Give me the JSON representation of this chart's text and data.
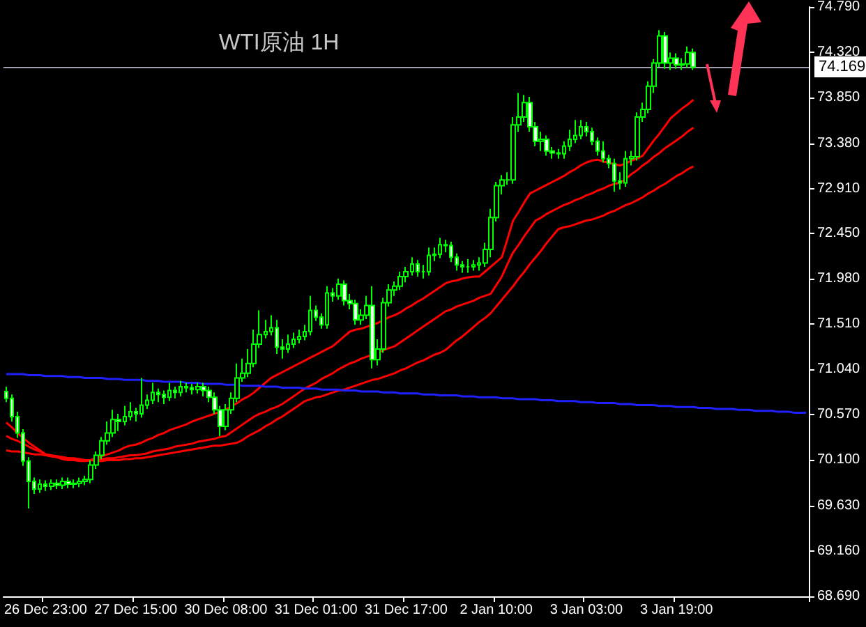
{
  "chart_data": {
    "type": "candlestick",
    "title": "WTI原油 1H",
    "categories": [
      null,
      null,
      null,
      null,
      null,
      null,
      null,
      "26 Dec 23:00",
      null,
      null,
      null,
      null,
      null,
      null,
      null,
      null,
      null,
      null,
      null,
      null,
      null,
      null,
      null,
      "27 Dec 15:00",
      null,
      null,
      null,
      null,
      null,
      null,
      null,
      null,
      null,
      null,
      null,
      null,
      null,
      null,
      null,
      "30 Dec 08:00",
      null,
      null,
      null,
      null,
      null,
      null,
      null,
      null,
      null,
      null,
      null,
      null,
      null,
      null,
      null,
      "31 Dec 01:00",
      null,
      null,
      null,
      null,
      null,
      null,
      null,
      null,
      null,
      null,
      null,
      null,
      null,
      null,
      null,
      "31 Dec 17:00",
      null,
      null,
      null,
      null,
      null,
      null,
      null,
      null,
      null,
      null,
      null,
      null,
      null,
      null,
      null,
      "2 Jan 10:00",
      null,
      null,
      null,
      null,
      null,
      null,
      null,
      null,
      null,
      null,
      null,
      null,
      null,
      null,
      null,
      "3 Jan 03:00",
      null,
      null,
      null,
      null,
      null,
      null,
      null,
      null,
      null,
      null,
      null,
      null,
      null,
      null,
      null,
      "3 Jan 19:00",
      null,
      null,
      null,
      null,
      null,
      null,
      null,
      null,
      null,
      null,
      null,
      null,
      null,
      null,
      null,
      null,
      null,
      null,
      null,
      null,
      null,
      null,
      null
    ],
    "color": "#00ff00",
    "ohlc": [
      [
        70.81,
        70.86,
        70.7,
        70.74
      ],
      [
        70.74,
        70.78,
        70.5,
        70.55
      ],
      [
        70.55,
        70.6,
        70.33,
        70.38
      ],
      [
        70.38,
        70.42,
        70.04,
        70.09
      ],
      [
        70.09,
        70.13,
        69.6,
        69.88
      ],
      [
        69.88,
        69.92,
        69.75,
        69.8
      ],
      [
        69.8,
        69.9,
        69.76,
        69.85
      ],
      [
        69.85,
        69.89,
        69.78,
        69.83
      ],
      [
        69.83,
        69.9,
        69.79,
        69.86
      ],
      [
        69.86,
        69.9,
        69.8,
        69.84
      ],
      [
        69.84,
        69.92,
        69.8,
        69.88
      ],
      [
        69.88,
        69.92,
        69.81,
        69.85
      ],
      [
        69.85,
        69.9,
        69.81,
        69.86
      ],
      [
        69.86,
        69.92,
        69.82,
        69.88
      ],
      [
        69.88,
        69.94,
        69.84,
        69.9
      ],
      [
        69.9,
        70.1,
        69.86,
        70.05
      ],
      [
        70.05,
        70.19,
        70.01,
        70.15
      ],
      [
        70.15,
        70.34,
        70.11,
        70.3
      ],
      [
        70.3,
        70.5,
        70.26,
        70.38
      ],
      [
        70.38,
        70.62,
        70.34,
        70.52
      ],
      [
        70.52,
        70.58,
        70.4,
        70.5
      ],
      [
        70.5,
        70.66,
        70.46,
        70.55
      ],
      [
        70.55,
        70.7,
        70.51,
        70.6
      ],
      [
        70.6,
        70.64,
        70.5,
        70.58
      ],
      [
        70.58,
        70.95,
        70.54,
        70.67
      ],
      [
        70.67,
        70.78,
        70.63,
        70.72
      ],
      [
        70.72,
        70.9,
        70.68,
        70.8
      ],
      [
        70.8,
        70.84,
        70.7,
        70.78
      ],
      [
        70.78,
        70.82,
        70.68,
        70.75
      ],
      [
        70.75,
        70.9,
        70.71,
        70.82
      ],
      [
        70.82,
        70.86,
        70.74,
        70.8
      ],
      [
        70.8,
        70.92,
        70.76,
        70.86
      ],
      [
        70.86,
        70.9,
        70.8,
        70.85
      ],
      [
        70.85,
        70.89,
        70.78,
        70.83
      ],
      [
        70.83,
        70.9,
        70.79,
        70.86
      ],
      [
        70.86,
        70.9,
        70.76,
        70.82
      ],
      [
        70.82,
        70.86,
        70.7,
        70.75
      ],
      [
        70.75,
        70.8,
        70.58,
        70.62
      ],
      [
        70.62,
        70.66,
        70.35,
        70.45
      ],
      [
        70.45,
        70.68,
        70.41,
        70.62
      ],
      [
        70.62,
        70.8,
        70.58,
        70.74
      ],
      [
        70.74,
        71.1,
        70.7,
        70.95
      ],
      [
        70.95,
        71.15,
        70.91,
        71.0
      ],
      [
        71.0,
        71.25,
        70.96,
        71.1
      ],
      [
        71.1,
        71.45,
        71.06,
        71.3
      ],
      [
        71.3,
        71.65,
        71.26,
        71.4
      ],
      [
        71.4,
        71.55,
        71.36,
        71.43
      ],
      [
        71.43,
        71.6,
        71.39,
        71.47
      ],
      [
        71.47,
        71.55,
        71.2,
        71.27
      ],
      [
        71.27,
        71.35,
        71.15,
        71.25
      ],
      [
        71.25,
        71.4,
        71.21,
        71.3
      ],
      [
        71.3,
        71.42,
        71.26,
        71.35
      ],
      [
        71.35,
        71.45,
        71.31,
        71.38
      ],
      [
        71.38,
        71.5,
        71.34,
        71.43
      ],
      [
        71.43,
        71.8,
        71.39,
        71.65
      ],
      [
        71.65,
        71.7,
        71.54,
        71.58
      ],
      [
        71.58,
        71.62,
        71.46,
        71.5
      ],
      [
        71.5,
        71.9,
        71.46,
        71.83
      ],
      [
        71.83,
        71.88,
        71.74,
        71.8
      ],
      [
        71.8,
        71.98,
        71.76,
        71.92
      ],
      [
        71.92,
        71.96,
        71.7,
        71.75
      ],
      [
        71.75,
        71.82,
        71.66,
        71.72
      ],
      [
        71.72,
        71.76,
        71.5,
        71.55
      ],
      [
        71.55,
        71.66,
        71.5,
        71.6
      ],
      [
        71.6,
        71.8,
        71.56,
        71.7
      ],
      [
        71.7,
        71.9,
        71.05,
        71.14
      ],
      [
        71.14,
        71.35,
        71.08,
        71.25
      ],
      [
        71.25,
        71.78,
        71.21,
        71.73
      ],
      [
        71.73,
        71.92,
        71.69,
        71.86
      ],
      [
        71.86,
        71.95,
        71.8,
        71.9
      ],
      [
        71.9,
        72.05,
        71.86,
        72.0
      ],
      [
        72.0,
        72.1,
        71.94,
        72.05
      ],
      [
        72.05,
        72.2,
        72.01,
        72.13
      ],
      [
        72.13,
        72.17,
        72.0,
        72.05
      ],
      [
        72.05,
        72.12,
        71.98,
        72.05
      ],
      [
        72.05,
        72.3,
        72.01,
        72.22
      ],
      [
        72.22,
        72.3,
        72.16,
        72.23
      ],
      [
        72.23,
        72.4,
        72.19,
        72.33
      ],
      [
        72.33,
        72.38,
        72.25,
        72.32
      ],
      [
        72.32,
        72.36,
        72.15,
        72.2
      ],
      [
        72.2,
        72.24,
        72.06,
        72.12
      ],
      [
        72.12,
        72.16,
        72.04,
        72.1
      ],
      [
        72.1,
        72.18,
        72.04,
        72.1
      ],
      [
        72.1,
        72.17,
        72.06,
        72.12
      ],
      [
        72.12,
        72.2,
        72.06,
        72.14
      ],
      [
        72.14,
        72.35,
        72.1,
        72.28
      ],
      [
        72.28,
        72.7,
        72.2,
        72.61
      ],
      [
        72.61,
        72.98,
        72.57,
        72.94
      ],
      [
        72.94,
        73.05,
        72.85,
        73.0
      ],
      [
        73.0,
        73.08,
        72.95,
        73.0
      ],
      [
        73.0,
        73.65,
        72.96,
        73.57
      ],
      [
        73.57,
        73.9,
        73.5,
        73.65
      ],
      [
        73.65,
        73.88,
        73.6,
        73.8
      ],
      [
        73.8,
        73.86,
        73.5,
        73.55
      ],
      [
        73.55,
        73.6,
        73.35,
        73.4
      ],
      [
        73.4,
        73.5,
        73.3,
        73.42
      ],
      [
        73.42,
        73.46,
        73.25,
        73.3
      ],
      [
        73.3,
        73.34,
        73.22,
        73.28
      ],
      [
        73.28,
        73.32,
        73.22,
        73.27
      ],
      [
        73.27,
        73.4,
        73.22,
        73.35
      ],
      [
        73.35,
        73.52,
        73.3,
        73.42
      ],
      [
        73.42,
        73.62,
        73.38,
        73.46
      ],
      [
        73.46,
        73.62,
        73.42,
        73.55
      ],
      [
        73.55,
        73.6,
        73.45,
        73.5
      ],
      [
        73.5,
        73.54,
        73.36,
        73.4
      ],
      [
        73.4,
        73.44,
        73.25,
        73.3
      ],
      [
        73.3,
        73.4,
        73.18,
        73.22
      ],
      [
        73.22,
        73.26,
        73.12,
        73.17
      ],
      [
        73.17,
        73.22,
        72.88,
        72.99
      ],
      [
        72.99,
        73.08,
        72.9,
        72.97
      ],
      [
        72.97,
        73.3,
        72.93,
        73.22
      ],
      [
        73.22,
        73.3,
        73.15,
        73.24
      ],
      [
        73.24,
        73.7,
        73.2,
        73.65
      ],
      [
        73.65,
        73.8,
        73.6,
        73.73
      ],
      [
        73.73,
        74.02,
        73.69,
        73.97
      ],
      [
        73.97,
        74.25,
        73.9,
        74.21
      ],
      [
        74.21,
        74.55,
        74.17,
        74.49
      ],
      [
        74.49,
        74.53,
        74.15,
        74.21
      ],
      [
        74.21,
        74.32,
        74.14,
        74.26
      ],
      [
        74.26,
        74.31,
        74.15,
        74.19
      ],
      [
        74.19,
        74.26,
        74.14,
        74.2
      ],
      [
        74.2,
        74.38,
        74.16,
        74.32
      ],
      [
        74.32,
        74.36,
        74.14,
        74.169
      ],
      null,
      null,
      null,
      null,
      null,
      null,
      null,
      null,
      null,
      null,
      null,
      null,
      null,
      null,
      null,
      null,
      null,
      null,
      null,
      null
    ],
    "series": [
      {
        "type": "line",
        "color": "#ff0000",
        "values": [
          70.49,
          70.44,
          70.38,
          70.33,
          70.28,
          70.24,
          70.2,
          70.16,
          70.14,
          70.13,
          70.11,
          70.1,
          70.1,
          70.09,
          70.09,
          70.1,
          70.12,
          70.14,
          70.16,
          70.18,
          70.2,
          70.23,
          70.25,
          70.26,
          70.28,
          70.31,
          70.33,
          70.36,
          70.38,
          70.41,
          70.43,
          70.45,
          70.47,
          70.5,
          70.52,
          70.54,
          70.56,
          70.58,
          70.6,
          70.62,
          70.66,
          70.69,
          70.73,
          70.76,
          70.8,
          70.85,
          70.9,
          70.95,
          70.98,
          71.01,
          71.04,
          71.07,
          71.1,
          71.13,
          71.16,
          71.19,
          71.22,
          71.25,
          71.28,
          71.33,
          71.38,
          71.43,
          71.45,
          71.46,
          71.48,
          71.5,
          71.52,
          71.55,
          71.58,
          71.6,
          71.63,
          71.67,
          71.7,
          71.74,
          71.77,
          71.81,
          71.85,
          71.89,
          71.93,
          71.95,
          71.96,
          71.98,
          71.99,
          72.0,
          72.0,
          72.05,
          72.1,
          72.15,
          72.2,
          72.39,
          72.58,
          72.67,
          72.77,
          72.86,
          72.89,
          72.92,
          72.95,
          72.98,
          73.01,
          73.04,
          73.08,
          73.11,
          73.15,
          73.18,
          73.2,
          73.21,
          73.19,
          73.18,
          73.16,
          73.15,
          73.17,
          73.2,
          73.22,
          73.25,
          73.33,
          73.41,
          73.48,
          73.56,
          73.64,
          73.69,
          73.74,
          73.78,
          73.83,
          null,
          null,
          null,
          null,
          null,
          null,
          null,
          null,
          null,
          null,
          null,
          null,
          null,
          null,
          null,
          null,
          null,
          null,
          null,
          null
        ]
      },
      {
        "type": "line",
        "color": "#ff0000",
        "values": [
          70.35,
          70.32,
          70.3,
          70.27,
          70.24,
          70.21,
          70.19,
          70.16,
          70.15,
          70.14,
          70.13,
          70.12,
          70.11,
          70.1,
          70.09,
          70.1,
          70.1,
          70.11,
          70.12,
          70.12,
          70.13,
          70.14,
          70.15,
          70.15,
          70.16,
          70.17,
          70.19,
          70.2,
          70.21,
          70.22,
          70.24,
          70.25,
          70.26,
          70.27,
          70.29,
          70.3,
          70.31,
          70.32,
          70.34,
          70.35,
          70.39,
          70.43,
          70.47,
          70.51,
          70.55,
          70.58,
          70.6,
          70.63,
          70.65,
          70.68,
          70.72,
          70.76,
          70.8,
          70.84,
          70.87,
          70.9,
          70.94,
          70.97,
          71.0,
          71.04,
          71.07,
          71.1,
          71.12,
          71.15,
          71.17,
          71.19,
          71.21,
          71.24,
          71.26,
          71.28,
          71.32,
          71.36,
          71.4,
          71.44,
          71.48,
          71.52,
          71.56,
          71.6,
          71.64,
          71.66,
          71.69,
          71.71,
          71.73,
          71.75,
          71.78,
          71.8,
          71.82,
          71.91,
          72.0,
          72.13,
          72.25,
          72.33,
          72.42,
          72.5,
          72.58,
          72.61,
          72.65,
          72.68,
          72.71,
          72.74,
          72.76,
          72.79,
          72.81,
          72.84,
          72.86,
          72.89,
          72.91,
          72.94,
          72.96,
          72.97,
          73.01,
          73.06,
          73.1,
          73.15,
          73.19,
          73.24,
          73.28,
          73.33,
          73.37,
          73.41,
          73.45,
          73.5,
          73.54,
          null,
          null,
          null,
          null,
          null,
          null,
          null,
          null,
          null,
          null,
          null,
          null,
          null,
          null,
          null,
          null,
          null,
          null,
          null,
          null
        ]
      },
      {
        "type": "line",
        "color": "#ff0000",
        "values": [
          70.2,
          70.19,
          70.19,
          70.18,
          70.17,
          70.16,
          70.16,
          70.15,
          70.14,
          70.14,
          70.13,
          70.12,
          70.12,
          70.11,
          70.1,
          70.1,
          70.09,
          70.09,
          70.1,
          70.1,
          70.1,
          70.11,
          70.11,
          70.12,
          70.12,
          70.13,
          70.14,
          70.15,
          70.16,
          70.17,
          70.18,
          70.19,
          70.2,
          70.21,
          70.22,
          70.23,
          70.24,
          70.25,
          70.25,
          70.26,
          70.27,
          70.28,
          70.31,
          70.35,
          70.38,
          70.41,
          70.45,
          70.48,
          70.52,
          70.55,
          70.59,
          70.63,
          70.67,
          70.71,
          70.73,
          70.75,
          70.76,
          70.78,
          70.8,
          70.82,
          70.83,
          70.85,
          70.87,
          70.89,
          70.91,
          70.93,
          70.94,
          70.96,
          70.98,
          71.0,
          71.03,
          71.05,
          71.08,
          71.11,
          71.13,
          71.16,
          71.19,
          71.21,
          71.24,
          71.29,
          71.34,
          71.38,
          71.43,
          71.48,
          71.53,
          71.57,
          71.62,
          71.69,
          71.76,
          71.83,
          71.9,
          71.98,
          72.05,
          72.13,
          72.2,
          72.27,
          72.35,
          72.42,
          72.49,
          72.51,
          72.52,
          72.54,
          72.56,
          72.58,
          72.59,
          72.61,
          72.63,
          72.66,
          72.68,
          72.71,
          72.74,
          72.76,
          72.79,
          72.82,
          72.86,
          72.89,
          72.93,
          72.96,
          73.0,
          73.04,
          73.07,
          73.11,
          73.14,
          null,
          null,
          null,
          null,
          null,
          null,
          null,
          null,
          null,
          null,
          null,
          null,
          null,
          null,
          null,
          null,
          null,
          null,
          null,
          null
        ]
      },
      {
        "type": "line",
        "color": "#2020ff",
        "values": [
          70.99,
          70.99,
          70.99,
          70.99,
          70.98,
          70.98,
          70.98,
          70.97,
          70.97,
          70.97,
          70.97,
          70.96,
          70.96,
          70.96,
          70.95,
          70.95,
          70.95,
          70.95,
          70.94,
          70.94,
          70.94,
          70.93,
          70.93,
          70.93,
          70.93,
          70.92,
          70.92,
          70.92,
          70.91,
          70.91,
          70.91,
          70.91,
          70.9,
          70.9,
          70.9,
          70.89,
          70.89,
          70.89,
          70.89,
          70.88,
          70.88,
          70.88,
          70.87,
          70.87,
          70.87,
          70.87,
          70.86,
          70.86,
          70.86,
          70.85,
          70.85,
          70.85,
          70.85,
          70.84,
          70.84,
          70.84,
          70.83,
          70.83,
          70.83,
          70.83,
          70.82,
          70.82,
          70.82,
          70.81,
          70.81,
          70.81,
          70.81,
          70.8,
          70.8,
          70.8,
          70.79,
          70.79,
          70.79,
          70.79,
          70.78,
          70.78,
          70.78,
          70.77,
          70.77,
          70.77,
          70.77,
          70.76,
          70.76,
          70.76,
          70.75,
          70.75,
          70.75,
          70.75,
          70.74,
          70.74,
          70.74,
          70.73,
          70.73,
          70.73,
          70.73,
          70.72,
          70.72,
          70.72,
          70.71,
          70.71,
          70.71,
          70.71,
          70.7,
          70.7,
          70.7,
          70.69,
          70.69,
          70.69,
          70.69,
          70.68,
          70.68,
          70.68,
          70.67,
          70.67,
          70.67,
          70.67,
          70.66,
          70.66,
          70.66,
          70.65,
          70.65,
          70.65,
          70.65,
          70.64,
          70.64,
          70.64,
          70.63,
          70.63,
          70.63,
          70.63,
          70.62,
          70.62,
          70.62,
          70.61,
          70.61,
          70.61,
          70.61,
          70.6,
          70.6,
          70.6,
          70.59,
          70.59,
          70.59
        ]
      }
    ],
    "ylim": [
      68.69,
      74.79
    ],
    "yticks": [
      {
        "value": 68.69,
        "label": "68.690"
      },
      {
        "value": 69.16,
        "label": "69.160"
      },
      {
        "value": 69.63,
        "label": "69.630"
      },
      {
        "value": 70.1,
        "label": "70.100"
      },
      {
        "value": 70.57,
        "label": "70.570"
      },
      {
        "value": 71.04,
        "label": "71.040"
      },
      {
        "value": 71.51,
        "label": "71.510"
      },
      {
        "value": 71.98,
        "label": "71.980"
      },
      {
        "value": 72.45,
        "label": "72.450"
      },
      {
        "value": 72.91,
        "label": "72.910"
      },
      {
        "value": 73.38,
        "label": "73.380"
      },
      {
        "value": 73.85,
        "label": "73.850"
      },
      {
        "value": 74.32,
        "label": "74.320"
      },
      {
        "value": 74.79,
        "label": "74.790"
      }
    ],
    "ref_lines": [
      {
        "axis": "y",
        "value": 74.169,
        "label": "74.169",
        "color": "#a0a0b0"
      }
    ]
  }
}
